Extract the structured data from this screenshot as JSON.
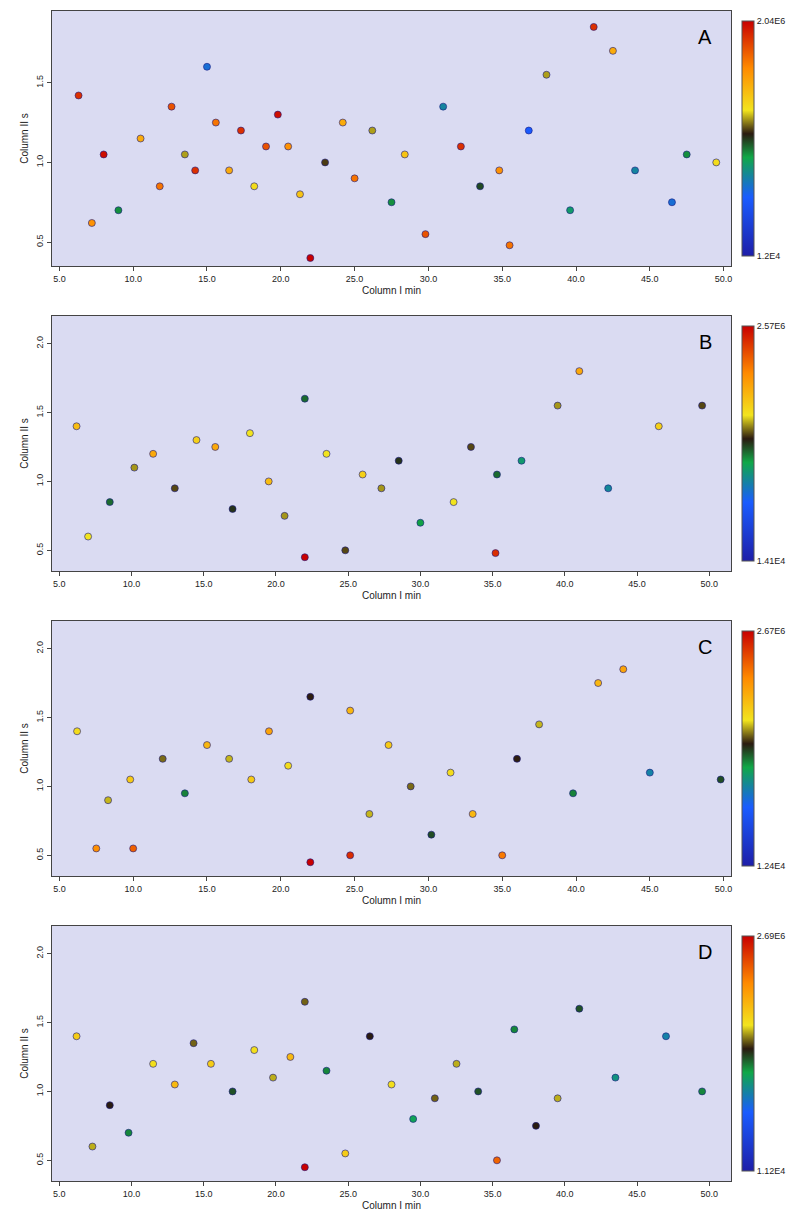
{
  "chart_data": [
    {
      "type": "scatter",
      "annotation": "A",
      "x_label": "Column I min",
      "y_label": "Column II s",
      "marker": "circle",
      "grid": false,
      "xlim": [
        4.5,
        50.5
      ],
      "xticks": [
        {
          "value": 5,
          "label": "5.0"
        },
        {
          "value": 10,
          "label": "10.0"
        },
        {
          "value": 15,
          "label": "15.0"
        },
        {
          "value": 20,
          "label": "20.0"
        },
        {
          "value": 25,
          "label": "25.0"
        },
        {
          "value": 30,
          "label": "30.0"
        },
        {
          "value": 35,
          "label": "35.0"
        },
        {
          "value": 40,
          "label": "40.0"
        },
        {
          "value": 45,
          "label": "45.0"
        },
        {
          "value": 50,
          "label": "50.0"
        }
      ],
      "ylim": [
        0.35,
        1.95
      ],
      "yticks": [
        0.5,
        {
          "value": 1,
          "label": "1.0"
        },
        1.5
      ],
      "x": [
        6.3,
        7.2,
        8.0,
        9.0,
        10.5,
        11.8,
        12.6,
        13.5,
        14.2,
        15.0,
        15.6,
        16.5,
        17.3,
        18.2,
        19.0,
        19.8,
        20.5,
        21.3,
        22.0,
        23.0,
        24.2,
        25.0,
        26.2,
        27.5,
        28.4,
        29.8,
        31.0,
        32.2,
        33.5,
        34.8,
        35.5,
        36.8,
        38.0,
        39.6,
        41.2,
        42.5,
        44.0,
        46.5,
        47.5,
        49.5
      ],
      "y": [
        1.42,
        0.62,
        1.05,
        0.7,
        1.15,
        0.85,
        1.35,
        1.05,
        0.95,
        1.6,
        1.25,
        0.95,
        1.2,
        0.85,
        1.1,
        1.3,
        1.1,
        0.8,
        0.4,
        1.0,
        1.25,
        0.9,
        1.2,
        0.75,
        1.05,
        0.55,
        1.35,
        1.1,
        0.85,
        0.95,
        0.48,
        1.2,
        1.55,
        0.7,
        1.85,
        1.7,
        0.95,
        0.75,
        1.05,
        1.0
      ],
      "intensity": [
        1900000,
        1600000,
        2000000,
        900000,
        1500000,
        1700000,
        1800000,
        1200000,
        1900000,
        600000,
        1700000,
        1500000,
        1900000,
        1300000,
        1800000,
        2000000,
        1600000,
        1400000,
        2040000,
        1100000,
        1500000,
        1700000,
        1200000,
        900000,
        1400000,
        1800000,
        700000,
        1900000,
        1000000,
        1600000,
        1700000,
        500000,
        1200000,
        800000,
        1900000,
        1500000,
        700000,
        600000,
        900000,
        1300000
      ],
      "colorbar": {
        "range": [
          12000,
          2040000
        ],
        "ticks": [
          {
            "value": 12000,
            "label": "1.2E4"
          },
          {
            "value": 2040000,
            "label": "2.04E6"
          }
        ]
      }
    },
    {
      "type": "scatter",
      "annotation": "B",
      "x_label": "Column I min",
      "y_label": "Column II s",
      "marker": "circle",
      "grid": false,
      "xlim": [
        4.5,
        51.5
      ],
      "xticks": [
        {
          "value": 5,
          "label": "5.0"
        },
        {
          "value": 10,
          "label": "10.0"
        },
        {
          "value": 15,
          "label": "15.0"
        },
        {
          "value": 20,
          "label": "20.0"
        },
        {
          "value": 25,
          "label": "25.0"
        },
        {
          "value": 30,
          "label": "30.0"
        },
        {
          "value": 35,
          "label": "35.0"
        },
        {
          "value": 40,
          "label": "40.0"
        },
        {
          "value": 45,
          "label": "45.0"
        },
        {
          "value": 50,
          "label": "50.0"
        }
      ],
      "ylim": [
        0.35,
        2.2
      ],
      "yticks": [
        0.5,
        {
          "value": 1,
          "label": "1.0"
        },
        1.5,
        {
          "value": 2,
          "label": "2.0"
        }
      ],
      "x": [
        6.2,
        7.0,
        8.5,
        10.2,
        11.5,
        13.0,
        14.5,
        15.8,
        17.0,
        18.2,
        19.5,
        20.6,
        22.0,
        22.0,
        23.5,
        24.8,
        26.0,
        27.3,
        28.5,
        30.0,
        32.3,
        33.5,
        35.2,
        35.3,
        37.0,
        39.5,
        41.0,
        43.0,
        46.5,
        49.5
      ],
      "y": [
        1.4,
        0.6,
        0.85,
        1.1,
        1.2,
        0.95,
        1.3,
        1.25,
        0.8,
        1.35,
        1.0,
        0.75,
        0.45,
        1.6,
        1.2,
        0.5,
        1.05,
        0.95,
        1.15,
        0.7,
        0.85,
        1.25,
        0.48,
        1.05,
        1.15,
        1.55,
        1.8,
        0.95,
        1.4,
        1.55
      ],
      "intensity": [
        1800000,
        1600000,
        1200000,
        1500000,
        1900000,
        1400000,
        1700000,
        1900000,
        1300000,
        1600000,
        1800000,
        1500000,
        2570000,
        1200000,
        1600000,
        1400000,
        1700000,
        1500000,
        1300000,
        1100000,
        1600000,
        1400000,
        2400000,
        1200000,
        1000000,
        1500000,
        1900000,
        900000,
        1700000,
        1400000
      ],
      "colorbar": {
        "range": [
          14100,
          2570000
        ],
        "ticks": [
          {
            "value": 14100,
            "label": "1.41E4"
          },
          {
            "value": 2570000,
            "label": "2.57E6"
          }
        ]
      }
    },
    {
      "type": "scatter",
      "annotation": "C",
      "x_label": "Column I min",
      "y_label": "Column II s",
      "marker": "circle",
      "grid": false,
      "xlim": [
        4.5,
        50.5
      ],
      "xticks": [
        {
          "value": 5,
          "label": "5.0"
        },
        {
          "value": 10,
          "label": "10.0"
        },
        {
          "value": 15,
          "label": "15.0"
        },
        {
          "value": 20,
          "label": "20.0"
        },
        {
          "value": 25,
          "label": "25.0"
        },
        {
          "value": 30,
          "label": "30.0"
        },
        {
          "value": 35,
          "label": "35.0"
        },
        {
          "value": 40,
          "label": "40.0"
        },
        {
          "value": 45,
          "label": "45.0"
        },
        {
          "value": 50,
          "label": "50.0"
        }
      ],
      "ylim": [
        0.35,
        2.2
      ],
      "yticks": [
        0.5,
        {
          "value": 1,
          "label": "1.0"
        },
        1.5,
        {
          "value": 2,
          "label": "2.0"
        }
      ],
      "x": [
        6.2,
        7.5,
        8.3,
        9.8,
        10.0,
        12.0,
        13.5,
        15.0,
        16.5,
        18.0,
        19.2,
        20.5,
        22.0,
        22.0,
        24.7,
        24.7,
        26.0,
        27.3,
        28.8,
        30.2,
        31.5,
        33.0,
        35.0,
        36.0,
        37.5,
        39.8,
        41.5,
        43.2,
        45.0,
        49.8
      ],
      "y": [
        1.4,
        0.55,
        0.9,
        1.05,
        0.55,
        1.2,
        0.95,
        1.3,
        1.2,
        1.05,
        1.4,
        1.15,
        0.45,
        1.65,
        0.5,
        1.55,
        0.8,
        1.3,
        1.0,
        0.65,
        1.1,
        0.8,
        0.5,
        1.2,
        1.45,
        0.95,
        1.75,
        1.85,
        1.1,
        1.05
      ],
      "intensity": [
        1700000,
        2100000,
        1600000,
        1800000,
        2300000,
        1500000,
        1200000,
        1900000,
        1600000,
        1800000,
        2000000,
        1700000,
        2670000,
        1400000,
        2500000,
        1900000,
        1600000,
        1800000,
        1500000,
        1300000,
        1700000,
        1900000,
        2200000,
        1400000,
        1600000,
        1200000,
        1900000,
        2000000,
        900000,
        1300000
      ],
      "colorbar": {
        "range": [
          12400,
          2670000
        ],
        "ticks": [
          {
            "value": 12400,
            "label": "1.24E4"
          },
          {
            "value": 2670000,
            "label": "2.67E6"
          }
        ]
      }
    },
    {
      "type": "scatter",
      "annotation": "D",
      "x_label": "Column I min",
      "y_label": "Column II s",
      "marker": "circle",
      "grid": false,
      "xlim": [
        4.5,
        51.5
      ],
      "xticks": [
        {
          "value": 5,
          "label": "5.0"
        },
        {
          "value": 10,
          "label": "10.0"
        },
        {
          "value": 15,
          "label": "15.0"
        },
        {
          "value": 20,
          "label": "20.0"
        },
        {
          "value": 25,
          "label": "25.0"
        },
        {
          "value": 30,
          "label": "30.0"
        },
        {
          "value": 35,
          "label": "35.0"
        },
        {
          "value": 40,
          "label": "40.0"
        },
        {
          "value": 45,
          "label": "45.0"
        },
        {
          "value": 50,
          "label": "50.0"
        }
      ],
      "ylim": [
        0.35,
        2.2
      ],
      "yticks": [
        0.5,
        {
          "value": 1,
          "label": "1.0"
        },
        1.5,
        {
          "value": 2,
          "label": "2.0"
        }
      ],
      "x": [
        6.2,
        7.3,
        8.5,
        9.8,
        11.5,
        13.0,
        14.3,
        15.5,
        17.0,
        18.5,
        19.8,
        21.0,
        22.0,
        22.0,
        23.5,
        24.8,
        26.5,
        28.0,
        29.5,
        31.0,
        32.5,
        34.0,
        35.3,
        36.5,
        38.0,
        39.5,
        41.0,
        43.5,
        47.0,
        49.5
      ],
      "y": [
        1.4,
        0.6,
        0.9,
        0.7,
        1.2,
        1.05,
        1.35,
        1.2,
        1.0,
        1.3,
        1.1,
        1.25,
        0.45,
        1.65,
        1.15,
        0.55,
        1.4,
        1.05,
        0.8,
        0.95,
        1.2,
        1.0,
        0.5,
        1.45,
        0.75,
        0.95,
        1.6,
        1.1,
        1.4,
        1.0
      ],
      "intensity": [
        1800000,
        1600000,
        1400000,
        1200000,
        1700000,
        1900000,
        1500000,
        1800000,
        1300000,
        1700000,
        1600000,
        1900000,
        2690000,
        1500000,
        1200000,
        1800000,
        1400000,
        1700000,
        1100000,
        1500000,
        1600000,
        1300000,
        2300000,
        1200000,
        1400000,
        1600000,
        1300000,
        1000000,
        900000,
        1200000
      ],
      "colorbar": {
        "range": [
          11200,
          2690000
        ],
        "ticks": [
          {
            "value": 11200,
            "label": "1.12E4"
          },
          {
            "value": 2690000,
            "label": "2.69E6"
          }
        ]
      }
    }
  ]
}
